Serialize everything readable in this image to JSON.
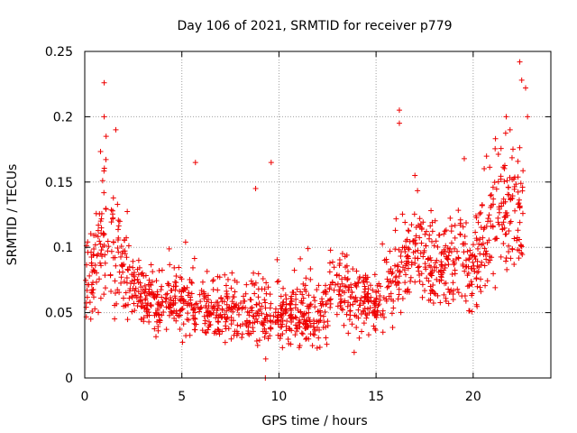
{
  "chart_data": {
    "type": "scatter",
    "title": "Day 106 of 2021, SRMTID for receiver p779",
    "xlabel": "GPS time / hours",
    "ylabel": "SRMTID / TECUs",
    "xlim": [
      0,
      24
    ],
    "ylim": [
      0,
      0.25
    ],
    "xticks": [
      0,
      5,
      10,
      15,
      20
    ],
    "yticks": [
      0,
      0.05,
      0.1,
      0.15,
      0.2,
      0.25
    ],
    "xtick_labels": [
      "0",
      "5",
      "10",
      "15",
      "20"
    ],
    "ytick_labels": [
      "0",
      "0.05",
      "0.1",
      "0.15",
      "0.2",
      "0.25"
    ],
    "grid": true,
    "marker": "+",
    "color": "#ee0000",
    "profile_note": "approximate envelope of the dense scatter (hour, typical SRMTID, spread)",
    "profile": [
      [
        0.0,
        0.075,
        0.025
      ],
      [
        0.5,
        0.08,
        0.03
      ],
      [
        1.0,
        0.11,
        0.045
      ],
      [
        1.5,
        0.1,
        0.04
      ],
      [
        2.0,
        0.08,
        0.03
      ],
      [
        3.0,
        0.06,
        0.02
      ],
      [
        4.0,
        0.058,
        0.02
      ],
      [
        5.0,
        0.055,
        0.02
      ],
      [
        6.0,
        0.055,
        0.02
      ],
      [
        7.0,
        0.05,
        0.02
      ],
      [
        8.0,
        0.05,
        0.02
      ],
      [
        9.0,
        0.05,
        0.02
      ],
      [
        10.0,
        0.048,
        0.02
      ],
      [
        11.0,
        0.048,
        0.02
      ],
      [
        12.0,
        0.045,
        0.02
      ],
      [
        13.0,
        0.07,
        0.025
      ],
      [
        14.0,
        0.06,
        0.025
      ],
      [
        15.0,
        0.058,
        0.02
      ],
      [
        16.0,
        0.08,
        0.03
      ],
      [
        17.0,
        0.1,
        0.03
      ],
      [
        18.0,
        0.08,
        0.025
      ],
      [
        19.0,
        0.09,
        0.03
      ],
      [
        20.0,
        0.08,
        0.03
      ],
      [
        21.0,
        0.12,
        0.04
      ],
      [
        22.0,
        0.13,
        0.045
      ],
      [
        22.6,
        0.12,
        0.05
      ]
    ],
    "highlights": [
      [
        1.0,
        0.226
      ],
      [
        1.0,
        0.2
      ],
      [
        1.6,
        0.19
      ],
      [
        1.1,
        0.185
      ],
      [
        5.7,
        0.165
      ],
      [
        9.6,
        0.165
      ],
      [
        16.2,
        0.205
      ],
      [
        16.2,
        0.195
      ],
      [
        17.0,
        0.155
      ],
      [
        22.4,
        0.242
      ],
      [
        22.5,
        0.228
      ],
      [
        22.7,
        0.222
      ],
      [
        22.8,
        0.2
      ],
      [
        21.7,
        0.2
      ],
      [
        21.9,
        0.19
      ],
      [
        8.8,
        0.145
      ],
      [
        9.3,
        0.0
      ]
    ]
  }
}
